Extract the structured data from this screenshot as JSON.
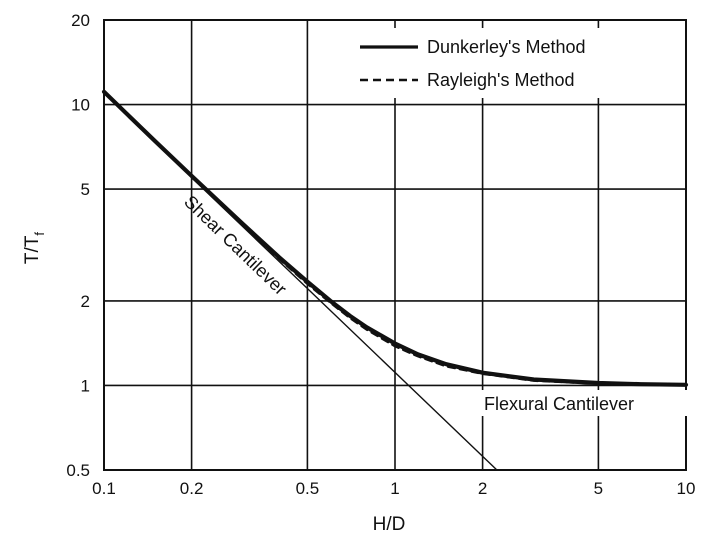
{
  "chart_data": {
    "type": "line",
    "title": "",
    "xlabel": "H/D",
    "ylabel": "T/T",
    "ylabel_subscript": "f",
    "x_scale": "log",
    "y_scale": "log",
    "xlim": [
      0.1,
      10
    ],
    "ylim": [
      0.5,
      20
    ],
    "grid": true,
    "legend_position": "top-right",
    "x_ticks": [
      0.1,
      0.2,
      0.5,
      1,
      2,
      5,
      10
    ],
    "x_tick_labels": [
      "0.1",
      "0.2",
      "0.5",
      "1",
      "2",
      "5",
      "10"
    ],
    "y_ticks": [
      0.5,
      1,
      2,
      5,
      10,
      20
    ],
    "y_tick_labels": [
      "0.5",
      "1",
      "2",
      "5",
      "10",
      "20"
    ],
    "series": [
      {
        "name": "Dunkerley's Method",
        "style": "solid-thick",
        "x": [
          0.1,
          0.15,
          0.2,
          0.3,
          0.4,
          0.5,
          0.6,
          0.7,
          0.8,
          1.0,
          1.2,
          1.5,
          2,
          3,
          5,
          7,
          10
        ],
        "y": [
          11.1,
          7.4,
          5.57,
          3.76,
          2.86,
          2.34,
          2.0,
          1.77,
          1.61,
          1.41,
          1.29,
          1.19,
          1.11,
          1.05,
          1.02,
          1.01,
          1.005
        ]
      },
      {
        "name": "Rayleigh's Method",
        "style": "dashed",
        "x": [
          0.1,
          0.15,
          0.2,
          0.3,
          0.4,
          0.5,
          0.6,
          0.7,
          0.8,
          1.0,
          1.2,
          1.5,
          2,
          3,
          5,
          7,
          10
        ],
        "y": [
          11.05,
          7.36,
          5.53,
          3.72,
          2.82,
          2.3,
          1.97,
          1.74,
          1.58,
          1.38,
          1.27,
          1.17,
          1.1,
          1.04,
          1.015,
          1.008,
          1.003
        ]
      },
      {
        "style": "thin",
        "x": [
          0.1,
          0.22
        ],
        "y": [
          11.0,
          5.0
        ]
      },
      {
        "style": "thin",
        "x": [
          0.22,
          2.24
        ],
        "y": [
          5.0,
          0.5
        ]
      }
    ],
    "annotations": [
      {
        "text": "Shear Cantilever",
        "x": 0.2,
        "y": 4.9
      },
      {
        "text": "Flexural Cantilever",
        "x": 2.0,
        "y": 0.86
      }
    ]
  }
}
